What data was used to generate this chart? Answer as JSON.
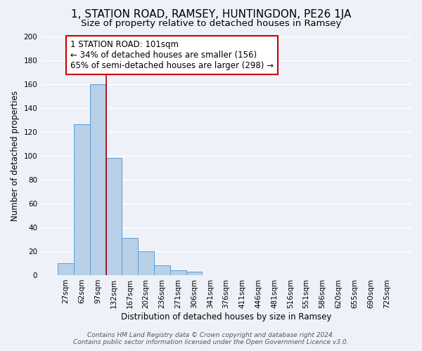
{
  "title": "1, STATION ROAD, RAMSEY, HUNTINGDON, PE26 1JA",
  "subtitle": "Size of property relative to detached houses in Ramsey",
  "xlabel": "Distribution of detached houses by size in Ramsey",
  "ylabel": "Number of detached properties",
  "bar_labels": [
    "27sqm",
    "62sqm",
    "97sqm",
    "132sqm",
    "167sqm",
    "202sqm",
    "236sqm",
    "271sqm",
    "306sqm",
    "341sqm",
    "376sqm",
    "411sqm",
    "446sqm",
    "481sqm",
    "516sqm",
    "551sqm",
    "586sqm",
    "620sqm",
    "655sqm",
    "690sqm",
    "725sqm"
  ],
  "bar_values": [
    10,
    126,
    160,
    98,
    31,
    20,
    8,
    4,
    3,
    0,
    0,
    0,
    0,
    0,
    0,
    0,
    0,
    0,
    0,
    0,
    0
  ],
  "bar_color": "#b8d0e8",
  "bar_edge_color": "#5b9bd5",
  "vline_x": 2.5,
  "vline_color": "#aa0000",
  "ylim": [
    0,
    200
  ],
  "yticks": [
    0,
    20,
    40,
    60,
    80,
    100,
    120,
    140,
    160,
    180,
    200
  ],
  "annotation_title": "1 STATION ROAD: 101sqm",
  "annotation_line1": "← 34% of detached houses are smaller (156)",
  "annotation_line2": "65% of semi-detached houses are larger (298) →",
  "annotation_box_facecolor": "#ffffff",
  "annotation_box_edgecolor": "#cc0000",
  "footer1": "Contains HM Land Registry data © Crown copyright and database right 2024.",
  "footer2": "Contains public sector information licensed under the Open Government Licence v3.0.",
  "bg_color": "#eef2f8",
  "grid_color": "#ffffff",
  "title_fontsize": 11,
  "subtitle_fontsize": 9.5,
  "axis_label_fontsize": 8.5,
  "tick_fontsize": 7.5,
  "annotation_fontsize": 8.5,
  "footer_fontsize": 6.5
}
